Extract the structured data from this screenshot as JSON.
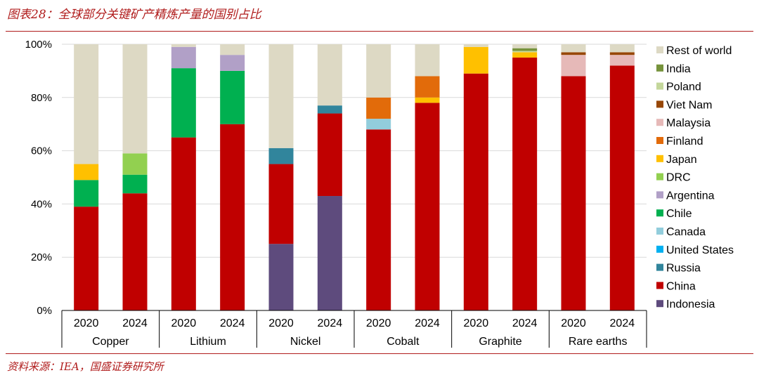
{
  "title": "图表28：全球部分关键矿产精炼产量的国别占比",
  "source": "资料来源：IEA，国盛证券研究所",
  "chart_data": {
    "type": "bar",
    "stacked": true,
    "ylim": [
      0,
      100
    ],
    "yticks": [
      "0%",
      "20%",
      "40%",
      "60%",
      "80%",
      "100%"
    ],
    "groups": [
      "Copper",
      "Lithium",
      "Nickel",
      "Cobalt",
      "Graphite",
      "Rare earths"
    ],
    "years": [
      "2020",
      "2024"
    ],
    "series": [
      {
        "name": "Indonesia",
        "color": "#5e4b7d",
        "values": [
          0,
          0,
          0,
          0,
          25,
          43,
          0,
          0,
          0,
          0,
          0,
          0
        ]
      },
      {
        "name": "China",
        "color": "#c00000",
        "values": [
          39,
          44,
          65,
          70,
          30,
          31,
          68,
          78,
          89,
          95,
          88,
          92
        ]
      },
      {
        "name": "Russia",
        "color": "#31859c",
        "values": [
          0,
          0,
          0,
          0,
          6,
          3,
          0,
          0,
          0,
          0,
          0,
          0
        ]
      },
      {
        "name": "United States",
        "color": "#00b0f0",
        "values": [
          0,
          0,
          0,
          0,
          0,
          0,
          0,
          0,
          0,
          0,
          0,
          0
        ]
      },
      {
        "name": "Canada",
        "color": "#92cddc",
        "values": [
          0,
          0,
          0,
          0,
          0,
          0,
          4,
          0,
          0,
          0,
          0,
          0
        ]
      },
      {
        "name": "Chile",
        "color": "#00b050",
        "values": [
          10,
          7,
          26,
          20,
          0,
          0,
          0,
          0,
          0,
          0,
          0,
          0
        ]
      },
      {
        "name": "Argentina",
        "color": "#b1a0c7",
        "values": [
          0,
          0,
          8,
          6,
          0,
          0,
          0,
          0,
          0,
          0,
          0,
          0
        ]
      },
      {
        "name": "DRC",
        "color": "#92d050",
        "values": [
          0,
          8,
          0,
          0,
          0,
          0,
          0,
          0,
          0,
          0,
          0,
          0
        ]
      },
      {
        "name": "Japan",
        "color": "#ffc000",
        "values": [
          6,
          0,
          0,
          0,
          0,
          0,
          0,
          2,
          10,
          2,
          0,
          0
        ]
      },
      {
        "name": "Finland",
        "color": "#e26b0a",
        "values": [
          0,
          0,
          0,
          0,
          0,
          0,
          8,
          8,
          0,
          0,
          0,
          0
        ]
      },
      {
        "name": "Malaysia",
        "color": "#e6b9b8",
        "values": [
          0,
          0,
          0,
          0,
          0,
          0,
          0,
          0,
          0,
          0,
          8,
          4
        ]
      },
      {
        "name": "Viet Nam",
        "color": "#974706",
        "values": [
          0,
          0,
          0,
          0,
          0,
          0,
          0,
          0,
          0,
          0,
          1,
          1
        ]
      },
      {
        "name": "Poland",
        "color": "#c4d79b",
        "values": [
          0,
          0,
          0,
          0,
          0,
          0,
          0,
          0,
          0,
          0.5,
          0,
          0
        ]
      },
      {
        "name": "India",
        "color": "#76933c",
        "values": [
          0,
          0,
          0,
          0,
          0,
          0,
          0,
          0,
          0,
          1,
          0,
          0
        ]
      },
      {
        "name": "Rest of world",
        "color": "#ddd9c4",
        "values": [
          45,
          41,
          1,
          4,
          39,
          23,
          20,
          12,
          1,
          1.5,
          3,
          3
        ]
      }
    ],
    "legend_order": [
      "Rest of world",
      "India",
      "Poland",
      "Viet Nam",
      "Malaysia",
      "Finland",
      "Japan",
      "DRC",
      "Argentina",
      "Chile",
      "Canada",
      "United States",
      "Russia",
      "China",
      "Indonesia"
    ]
  }
}
